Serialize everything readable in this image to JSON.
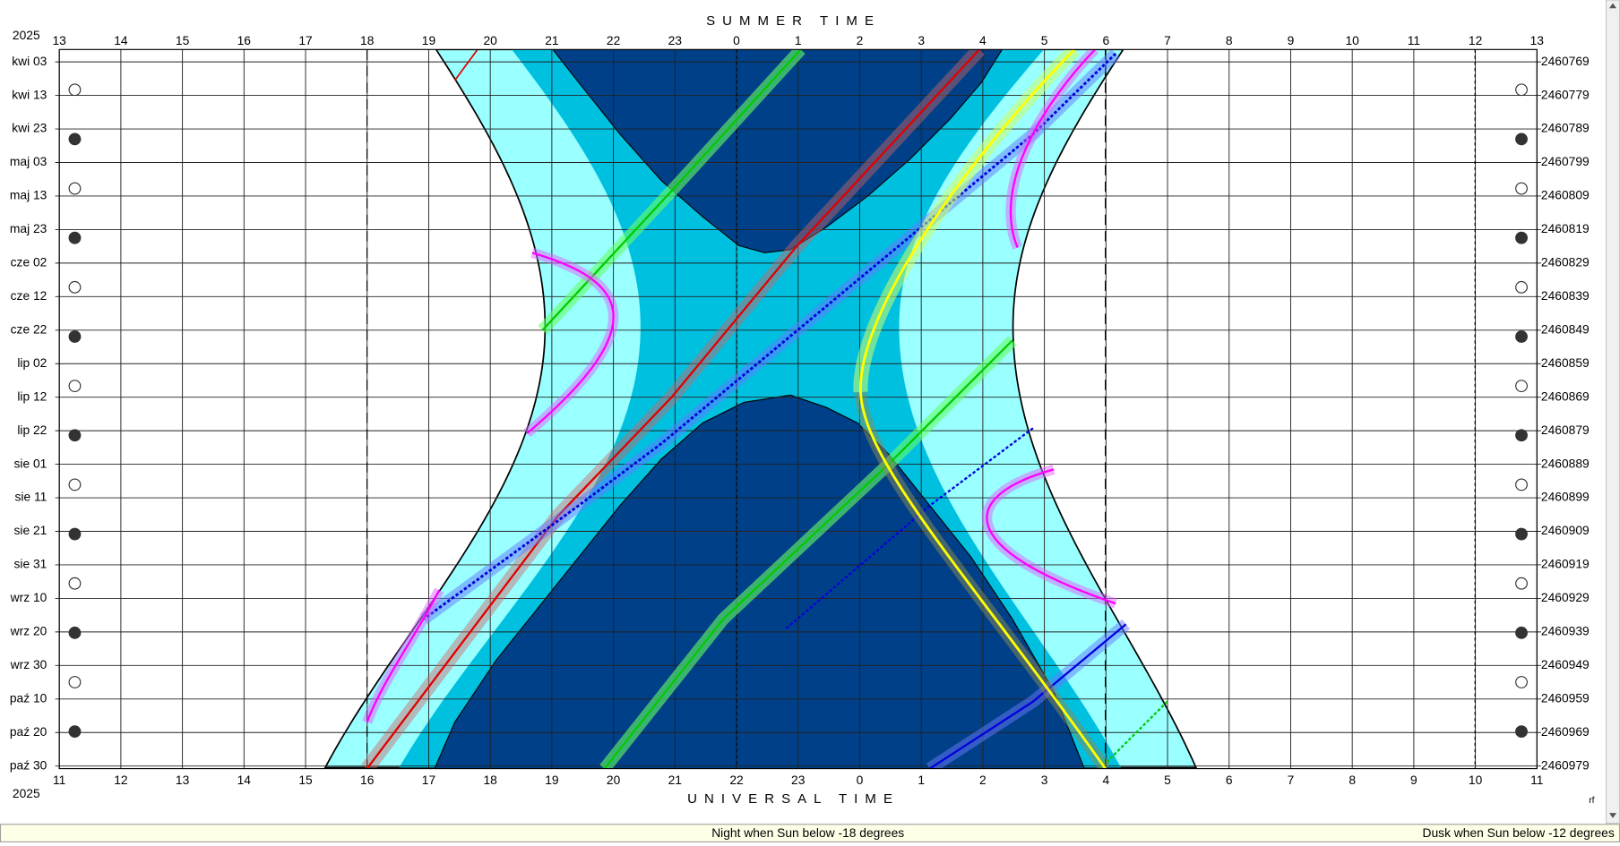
{
  "header": {
    "year": "2025",
    "title": "SUMMER TIME"
  },
  "axes": {
    "top_hours": [
      13,
      14,
      15,
      16,
      17,
      18,
      19,
      20,
      21,
      22,
      23,
      0,
      1,
      2,
      3,
      4,
      5,
      6,
      7,
      8,
      9,
      10,
      11,
      12,
      13
    ],
    "bottom_hours": [
      11,
      12,
      13,
      14,
      15,
      16,
      17,
      18,
      19,
      20,
      21,
      22,
      23,
      0,
      1,
      2,
      3,
      4,
      5,
      6,
      7,
      8,
      9,
      10,
      11
    ],
    "dates": [
      "kwi 03",
      "kwi 13",
      "kwi 23",
      "maj 03",
      "maj 13",
      "maj 23",
      "cze 02",
      "cze 12",
      "cze 22",
      "lip 02",
      "lip 12",
      "lip 22",
      "sie 01",
      "sie 11",
      "sie 21",
      "sie 31",
      "wrz 10",
      "wrz 20",
      "wrz 30",
      "paź 10",
      "paź 20",
      "paź 30"
    ],
    "julian_days": [
      2460769,
      2460779,
      2460789,
      2460799,
      2460809,
      2460819,
      2460829,
      2460839,
      2460849,
      2460859,
      2460869,
      2460879,
      2460889,
      2460899,
      2460909,
      2460919,
      2460929,
      2460939,
      2460949,
      2460959,
      2460969,
      2460979
    ]
  },
  "footer": {
    "year": "2025",
    "title": "UNIVERSAL TIME",
    "corner": "rf"
  },
  "status_bar": {
    "night": "Night when Sun below -18 degrees",
    "dusk": "Dusk when Sun below -12 degrees"
  }
}
